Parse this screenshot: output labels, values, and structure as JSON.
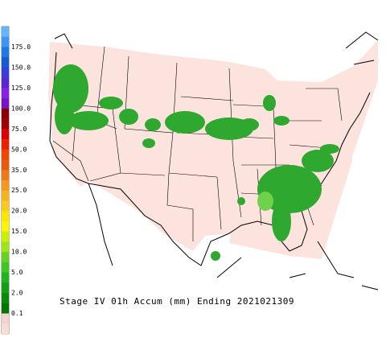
{
  "title": "Stage IV 01h Accum (mm) Ending 2021021309",
  "legend": {
    "labels": [
      "175.0",
      "150.0",
      "125.0",
      "100.0",
      "75.0",
      "50.0",
      "35.0",
      "25.0",
      "20.0",
      "15.0",
      "10.0",
      "5.0",
      "2.0",
      "0.1"
    ],
    "colors": [
      "#64b4ff",
      "#3c96f5",
      "#1e78e6",
      "#145ad2",
      "#3c3cdc",
      "#5a28d2",
      "#8c1ee6",
      "#7814c8",
      "#8c0000",
      "#a00000",
      "#dc0000",
      "#f01e00",
      "#f04600",
      "#e65a0a",
      "#f07814",
      "#f5961e",
      "#f5b41e",
      "#ffc81e",
      "#ffe600",
      "#fff500",
      "#c8f000",
      "#a0e614",
      "#64d21e",
      "#3cc81e",
      "#1eb41e",
      "#14a014",
      "#0a8c0a",
      "#007800",
      "#f5d2cd",
      "#fadcd7"
    ]
  }
}
